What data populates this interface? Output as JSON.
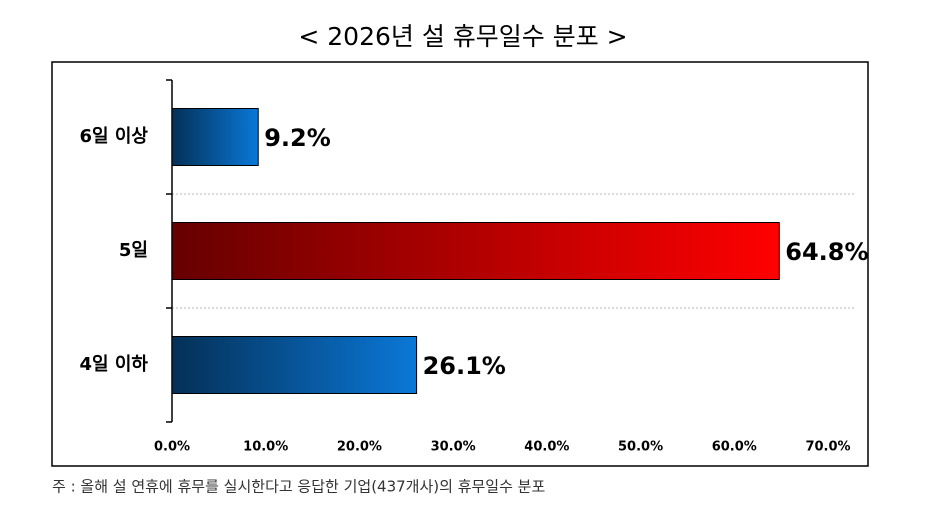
{
  "chart_data": {
    "type": "hbar",
    "title": "< 2026년 설 휴무일수 분포 >",
    "categories": [
      "6일 이상",
      "5일",
      "4일 이하"
    ],
    "values": [
      9.2,
      64.8,
      26.1
    ],
    "value_labels": [
      "9.2%",
      "64.8%",
      "26.1%"
    ],
    "colors": [
      "#0a78d8",
      "#ff0000",
      "#0a78d8"
    ],
    "xlim": [
      0,
      70
    ],
    "xticks": [
      {
        "value": 0,
        "label": "0.0%"
      },
      {
        "value": 10,
        "label": "10.0%"
      },
      {
        "value": 20,
        "label": "20.0%"
      },
      {
        "value": 30,
        "label": "30.0%"
      },
      {
        "value": 40,
        "label": "40.0%"
      },
      {
        "value": 50,
        "label": "50.0%"
      },
      {
        "value": 60,
        "label": "60.0%"
      },
      {
        "value": 70,
        "label": "70.0%"
      }
    ],
    "note": "주 : 올해 설 연휴에 휴무를 실시한다고 응답한 기업(437개사)의 휴무일수 분포"
  }
}
